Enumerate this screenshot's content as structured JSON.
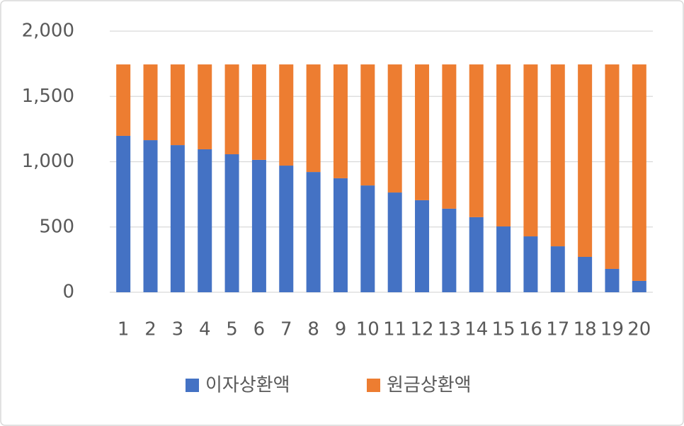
{
  "chart_data": {
    "type": "stacked_bar",
    "categories": [
      "1",
      "2",
      "3",
      "4",
      "5",
      "6",
      "7",
      "8",
      "9",
      "10",
      "11",
      "12",
      "13",
      "14",
      "15",
      "16",
      "17",
      "18",
      "19",
      "20"
    ],
    "series": [
      {
        "name": "이자상환액",
        "color": "#4472c4",
        "values": [
          1198,
          1165,
          1127,
          1095,
          1057,
          1014,
          970,
          921,
          873,
          818,
          764,
          705,
          640,
          575,
          504,
          428,
          352,
          271,
          179,
          87
        ]
      },
      {
        "name": "원금상환액",
        "color": "#ed7d31",
        "values": [
          547,
          580,
          618,
          650,
          688,
          731,
          775,
          824,
          872,
          927,
          981,
          1040,
          1105,
          1170,
          1241,
          1317,
          1393,
          1474,
          1566,
          1658
        ]
      }
    ],
    "ylim": [
      0,
      2000
    ],
    "yticks": [
      0,
      500,
      {
        "value": 1000,
        "label": "1,000"
      },
      {
        "value": 1500,
        "label": "1,500"
      },
      {
        "value": 2000,
        "label": "2,000"
      }
    ],
    "grid": true,
    "legend": "bottom"
  }
}
